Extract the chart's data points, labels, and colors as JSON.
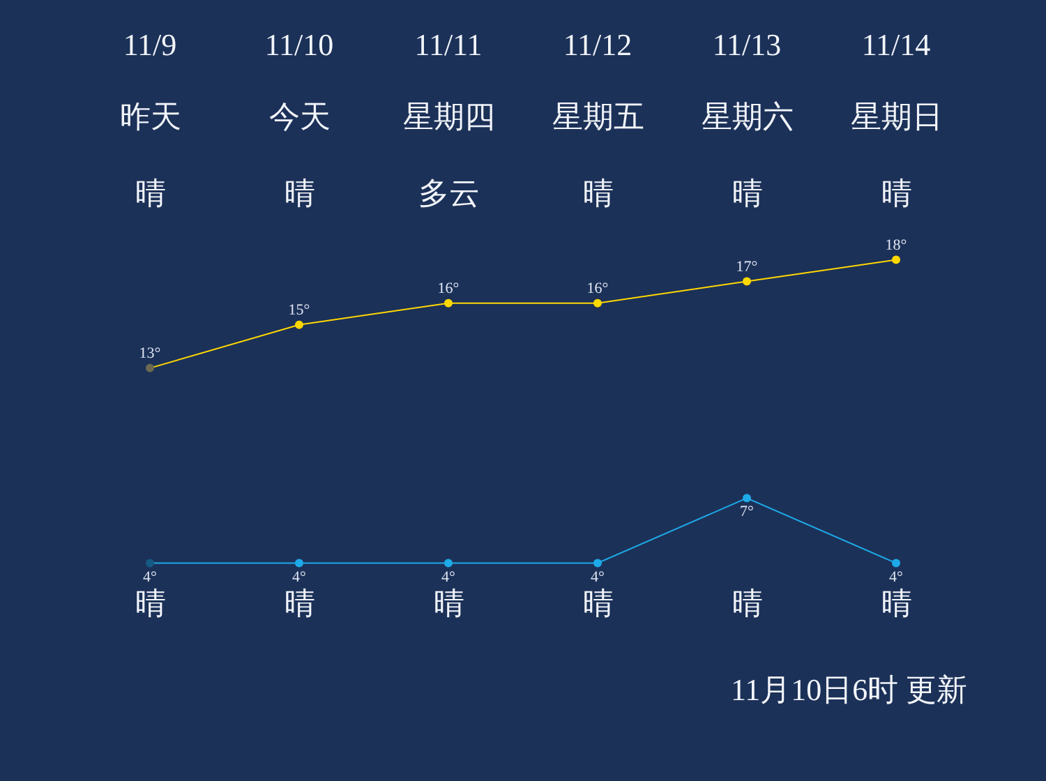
{
  "chart_data": {
    "type": "line",
    "categories": [
      "11/9",
      "11/10",
      "11/11",
      "11/12",
      "11/13",
      "11/14"
    ],
    "series": [
      {
        "color": "#ffd800",
        "colors": [
          "#6b6a50",
          "#ffd800",
          "#ffd800",
          "#ffd800",
          "#ffd800",
          "#ffd800"
        ],
        "values": [
          13,
          15,
          16,
          16,
          17,
          18
        ],
        "value_labels": [
          "13°",
          "15°",
          "16°",
          "16°",
          "17°",
          "18°"
        ]
      },
      {
        "color": "#1eaae8",
        "colors": [
          "#155a85",
          "#1eaae8",
          "#1eaae8",
          "#1eaae8",
          "#1eaae8",
          "#1eaae8"
        ],
        "values": [
          4,
          4,
          4,
          4,
          7,
          4
        ],
        "value_labels": [
          "4°",
          "4°",
          "4°",
          "4°",
          "7°",
          "4°"
        ]
      }
    ],
    "tick_labels": "x",
    "marker": "circle",
    "annotations": [
      "昨天",
      "今天",
      "星期四",
      "星期五",
      "星期六",
      "星期日",
      "晴",
      "晴",
      "多云",
      "晴",
      "晴",
      "晴",
      "晴",
      "晴",
      "晴",
      "晴",
      "晴",
      "晴",
      "11月10日6时 更新"
    ]
  }
}
